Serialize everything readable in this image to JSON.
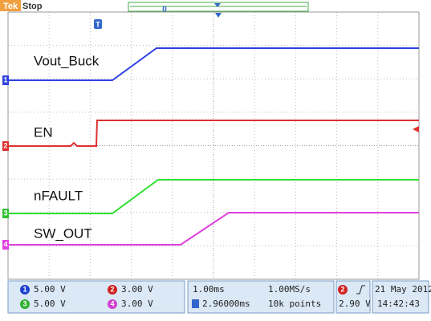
{
  "header": {
    "brand": "Tek",
    "state": "Stop",
    "trigger_position": "0",
    "trigger_marker": "T"
  },
  "traces": [
    {
      "label": "Vout_Buck",
      "channel": "1"
    },
    {
      "label": "EN",
      "channel": "2"
    },
    {
      "label": "nFAULT",
      "channel": "3"
    },
    {
      "label": "SW_OUT",
      "channel": "4"
    }
  ],
  "status": {
    "channels": [
      {
        "channel": "1",
        "scale": "5.00 V"
      },
      {
        "channel": "2",
        "scale": "3.00 V"
      },
      {
        "channel": "3",
        "scale": "5.00 V"
      },
      {
        "channel": "4",
        "scale": "3.00 V"
      }
    ],
    "timebase": "1.00ms",
    "sample_rate": "1.00MS/s",
    "delay": "2.96000ms",
    "record_length": "10k points",
    "trigger_channel": "2",
    "trigger_level": "2.90 V",
    "date": "21 May 2012",
    "time": "14:42:43"
  }
}
